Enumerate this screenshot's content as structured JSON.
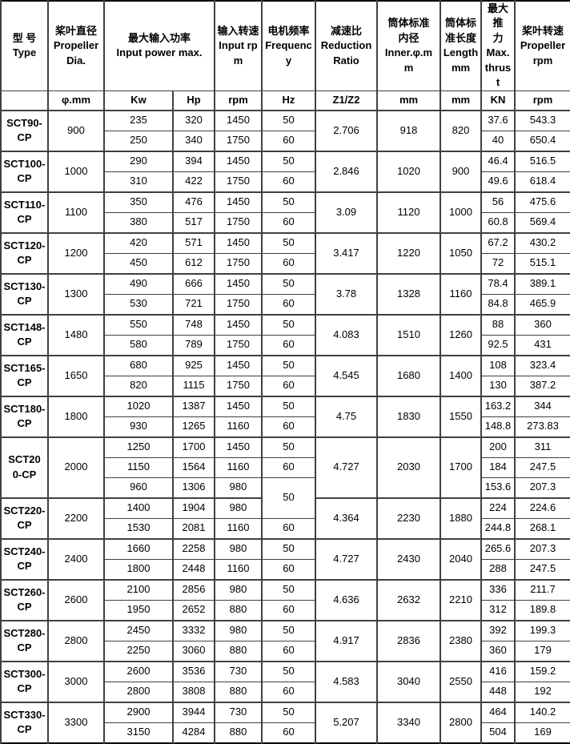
{
  "colors": {
    "background": "#ffffff",
    "text": "#000000",
    "grid_thin": "#404040",
    "grid_thick": "#000000"
  },
  "table": {
    "headers": [
      "型 号\nType",
      "桨叶直径\nPropeller\nDia.",
      "最大输入功率\nInput power max.",
      "输入转速\nInput rp\nm",
      "电机频率\nFrequency",
      "减速比\nReduction\nRatio",
      "筒体标准\n内径\nInner.φ.m\nm",
      "筒体标\n准长度\nLength\nmm",
      "最大推\n力\nMax.\nthrust",
      "桨叶转速\nPropeller\nrpm"
    ],
    "units": [
      "",
      "φ.mm",
      "Kw",
      "Hp",
      "rpm",
      "Hz",
      "Z1/Z2",
      "mm",
      "mm",
      "KN",
      "rpm"
    ],
    "groups": [
      {
        "model": "SCT90-\nCP",
        "dia": "900",
        "ratio": "2.706",
        "inner": "918",
        "length": "820",
        "rows": [
          {
            "kw": "235",
            "hp": "320",
            "rpm": "1450",
            "hz": "50",
            "thrust": "37.6",
            "prop": "543.3"
          },
          {
            "kw": "250",
            "hp": "340",
            "rpm": "1750",
            "hz": "60",
            "thrust": "40",
            "prop": "650.4"
          }
        ]
      },
      {
        "model": "SCT100-\nCP",
        "dia": "1000",
        "ratio": "2.846",
        "inner": "1020",
        "length": "900",
        "rows": [
          {
            "kw": "290",
            "hp": "394",
            "rpm": "1450",
            "hz": "50",
            "thrust": "46.4",
            "prop": "516.5"
          },
          {
            "kw": "310",
            "hp": "422",
            "rpm": "1750",
            "hz": "60",
            "thrust": "49.6",
            "prop": "618.4"
          }
        ]
      },
      {
        "model": "SCT110-\nCP",
        "dia": "1100",
        "ratio": "3.09",
        "inner": "1120",
        "length": "1000",
        "rows": [
          {
            "kw": "350",
            "hp": "476",
            "rpm": "1450",
            "hz": "50",
            "thrust": "56",
            "prop": "475.6"
          },
          {
            "kw": "380",
            "hp": "517",
            "rpm": "1750",
            "hz": "60",
            "thrust": "60.8",
            "prop": "569.4"
          }
        ]
      },
      {
        "model": "SCT120-\nCP",
        "dia": "1200",
        "ratio": "3.417",
        "inner": "1220",
        "length": "1050",
        "rows": [
          {
            "kw": "420",
            "hp": "571",
            "rpm": "1450",
            "hz": "50",
            "thrust": "67.2",
            "prop": "430.2"
          },
          {
            "kw": "450",
            "hp": "612",
            "rpm": "1750",
            "hz": "60",
            "thrust": "72",
            "prop": "515.1"
          }
        ]
      },
      {
        "model": "SCT130-\nCP",
        "dia": "1300",
        "ratio": "3.78",
        "inner": "1328",
        "length": "1160",
        "rows": [
          {
            "kw": "490",
            "hp": "666",
            "rpm": "1450",
            "hz": "50",
            "thrust": "78.4",
            "prop": "389.1"
          },
          {
            "kw": "530",
            "hp": "721",
            "rpm": "1750",
            "hz": "60",
            "thrust": "84.8",
            "prop": "465.9"
          }
        ]
      },
      {
        "model": "SCT148-\nCP",
        "dia": "1480",
        "ratio": "4.083",
        "inner": "1510",
        "length": "1260",
        "rows": [
          {
            "kw": "550",
            "hp": "748",
            "rpm": "1450",
            "hz": "50",
            "thrust": "88",
            "prop": "360"
          },
          {
            "kw": "580",
            "hp": "789",
            "rpm": "1750",
            "hz": "60",
            "thrust": "92.5",
            "prop": "431"
          }
        ]
      },
      {
        "model": "SCT165-\nCP",
        "dia": "1650",
        "ratio": "4.545",
        "inner": "1680",
        "length": "1400",
        "rows": [
          {
            "kw": "680",
            "hp": "925",
            "rpm": "1450",
            "hz": "50",
            "thrust": "108",
            "prop": "323.4"
          },
          {
            "kw": "820",
            "hp": "1115",
            "rpm": "1750",
            "hz": "60",
            "thrust": "130",
            "prop": "387.2"
          }
        ]
      },
      {
        "model": "SCT180-\nCP",
        "dia": "1800",
        "ratio": "4.75",
        "inner": "1830",
        "length": "1550",
        "rows": [
          {
            "kw": "1020",
            "hp": "1387",
            "rpm": "1450",
            "hz": "50",
            "thrust": "163.2",
            "prop": "344"
          },
          {
            "kw": "930",
            "hp": "1265",
            "rpm": "1160",
            "hz": "60",
            "thrust": "148.8",
            "prop": "273.83"
          }
        ]
      },
      {
        "model": "SCT20\n0-CP",
        "dia": "2000",
        "ratio": "4.727",
        "inner": "2030",
        "length": "1700",
        "rows": [
          {
            "kw": "1250",
            "hp": "1700",
            "rpm": "1450",
            "hz": "50",
            "thrust": "200",
            "prop": "311"
          },
          {
            "kw": "1150",
            "hp": "1564",
            "rpm": "1160",
            "hz": "60",
            "thrust": "184",
            "prop": "247.5"
          },
          {
            "kw": "960",
            "hp": "1306",
            "rpm": "980",
            "hz": "50",
            "hz_span": 2,
            "thrust": "153.6",
            "prop": "207.3"
          }
        ]
      },
      {
        "model": "SCT220-\nCP",
        "dia": "2200",
        "ratio": "4.364",
        "inner": "2230",
        "length": "1880",
        "rows": [
          {
            "kw": "1400",
            "hp": "1904",
            "rpm": "980",
            "hz": null,
            "thrust": "224",
            "prop": "224.6"
          },
          {
            "kw": "1530",
            "hp": "2081",
            "rpm": "1160",
            "hz": "60",
            "thrust": "244.8",
            "prop": "268.1"
          }
        ]
      },
      {
        "model": "SCT240-\nCP",
        "dia": "2400",
        "ratio": "4.727",
        "inner": "2430",
        "length": "2040",
        "rows": [
          {
            "kw": "1660",
            "hp": "2258",
            "rpm": "980",
            "hz": "50",
            "thrust": "265.6",
            "prop": "207.3"
          },
          {
            "kw": "1800",
            "hp": "2448",
            "rpm": "1160",
            "hz": "60",
            "thrust": "288",
            "prop": "247.5"
          }
        ]
      },
      {
        "model": "SCT260-\nCP",
        "dia": "2600",
        "ratio": "4.636",
        "inner": "2632",
        "length": "2210",
        "rows": [
          {
            "kw": "2100",
            "hp": "2856",
            "rpm": "980",
            "hz": "50",
            "thrust": "336",
            "prop": "211.7"
          },
          {
            "kw": "1950",
            "hp": "2652",
            "rpm": "880",
            "hz": "60",
            "thrust": "312",
            "prop": "189.8"
          }
        ]
      },
      {
        "model": "SCT280-\nCP",
        "dia": "2800",
        "ratio": "4.917",
        "inner": "2836",
        "length": "2380",
        "rows": [
          {
            "kw": "2450",
            "hp": "3332",
            "rpm": "980",
            "hz": "50",
            "thrust": "392",
            "prop": "199.3"
          },
          {
            "kw": "2250",
            "hp": "3060",
            "rpm": "880",
            "hz": "60",
            "thrust": "360",
            "prop": "179"
          }
        ]
      },
      {
        "model": "SCT300-\nCP",
        "dia": "3000",
        "ratio": "4.583",
        "inner": "3040",
        "length": "2550",
        "rows": [
          {
            "kw": "2600",
            "hp": "3536",
            "rpm": "730",
            "hz": "50",
            "thrust": "416",
            "prop": "159.2"
          },
          {
            "kw": "2800",
            "hp": "3808",
            "rpm": "880",
            "hz": "60",
            "thrust": "448",
            "prop": "192"
          }
        ]
      },
      {
        "model": "SCT330-\nCP",
        "dia": "3300",
        "ratio": "5.207",
        "inner": "3340",
        "length": "2800",
        "rows": [
          {
            "kw": "2900",
            "hp": "3944",
            "rpm": "730",
            "hz": "50",
            "thrust": "464",
            "prop": "140.2"
          },
          {
            "kw": "3150",
            "hp": "4284",
            "rpm": "880",
            "hz": "60",
            "thrust": "504",
            "prop": "169"
          }
        ]
      }
    ]
  }
}
